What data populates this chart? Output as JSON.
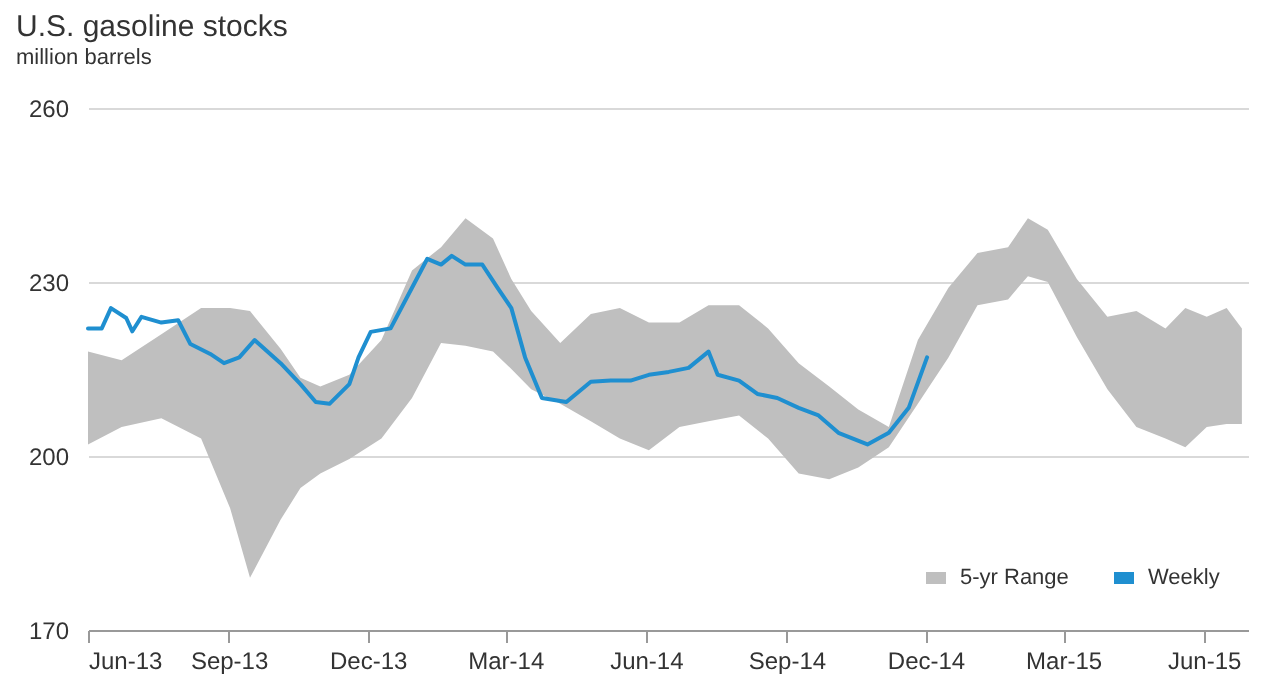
{
  "chart_data": {
    "type": "line",
    "title": "U.S. gasoline stocks",
    "subtitle": "million barrels",
    "xlim": [
      "2013-06-01",
      "2015-06-30"
    ],
    "xticks": [
      {
        "value": "2013-06-01",
        "label": "Jun-13"
      },
      {
        "value": "2013-09-01",
        "label": "Sep-13"
      },
      {
        "value": "2013-12-01",
        "label": "Dec-13"
      },
      {
        "value": "2014-03-01",
        "label": "Mar-14"
      },
      {
        "value": "2014-06-01",
        "label": "Jun-14"
      },
      {
        "value": "2014-09-01",
        "label": "Sep-14"
      },
      {
        "value": "2014-12-01",
        "label": "Dec-14"
      },
      {
        "value": "2015-03-01",
        "label": "Mar-15"
      },
      {
        "value": "2015-06-01",
        "label": "Jun-15"
      }
    ],
    "ylim": [
      170,
      260
    ],
    "yticks": [
      170,
      200,
      230,
      260
    ],
    "grid": "y",
    "legend": "bottom right",
    "series": [
      {
        "name": "5-yr Range",
        "type": "area",
        "color": "#bfbfbf",
        "values": [
          null,
          null,
          null,
          null,
          null,
          null,
          null,
          null,
          null,
          null,
          null,
          null,
          null,
          null,
          null,
          null,
          null,
          null,
          null,
          null,
          null,
          null,
          null,
          null,
          null,
          null,
          null,
          null,
          null,
          null,
          null,
          null,
          null,
          null,
          null,
          null,
          null,
          null,
          null,
          null,
          null,
          null,
          null
        ],
        "x": [
          "2013-06-01",
          "2013-06-23",
          "2013-07-19",
          "2013-08-14",
          "2013-09-02",
          "2013-09-15",
          "2013-10-05",
          "2013-10-18",
          "2013-10-31",
          "2013-11-19",
          "2013-12-10",
          "2013-12-30",
          "2014-01-18",
          "2014-02-03",
          "2014-02-21",
          "2014-03-05",
          "2014-03-18",
          "2014-04-06",
          "2014-04-26",
          "2014-05-15",
          "2014-06-03",
          "2014-06-23",
          "2014-07-12",
          "2014-08-01",
          "2014-08-20",
          "2014-09-09",
          "2014-09-29",
          "2014-10-18",
          "2014-11-07",
          "2014-11-26",
          "2014-12-16",
          "2015-01-04",
          "2015-01-24",
          "2015-02-06",
          "2015-02-19",
          "2015-03-10",
          "2015-03-30",
          "2015-04-18",
          "2015-05-07",
          "2015-05-20",
          "2015-06-03",
          "2015-06-16",
          "2015-06-26"
        ],
        "upper": [
          218,
          216.5,
          221,
          225.5,
          225.5,
          225,
          218.5,
          213.5,
          212,
          214,
          220,
          232,
          236,
          241,
          237.5,
          230.5,
          225,
          219.5,
          224.5,
          225.5,
          223,
          223,
          226,
          226,
          222,
          216,
          212,
          208,
          205,
          220,
          229,
          235,
          236,
          241,
          239,
          230.5,
          224,
          225,
          222,
          225.5,
          224,
          225.5,
          222
        ],
        "lower": [
          202,
          205,
          206.5,
          203,
          191,
          179,
          189,
          194.5,
          197,
          199.5,
          203,
          210,
          219.5,
          219,
          218,
          215,
          211.5,
          209,
          206,
          203,
          201,
          205,
          206,
          207,
          203,
          197,
          196,
          198,
          201.5,
          209,
          217,
          226,
          227,
          231,
          230,
          220.5,
          211.5,
          205,
          203,
          201.5,
          205,
          205.5,
          205.5
        ]
      },
      {
        "name": "Weekly",
        "type": "line",
        "color": "#1f8fd0",
        "x": [
          "2013-06-01",
          "2013-06-10",
          "2013-06-16",
          "2013-06-26",
          "2013-06-30",
          "2013-07-06",
          "2013-07-19",
          "2013-07-30",
          "2013-08-07",
          "2013-08-20",
          "2013-08-29",
          "2013-09-08",
          "2013-09-18",
          "2013-10-05",
          "2013-10-18",
          "2013-10-28",
          "2013-11-06",
          "2013-11-19",
          "2013-11-25",
          "2013-12-03",
          "2013-12-16",
          "2013-12-30",
          "2014-01-09",
          "2014-01-18",
          "2014-01-25",
          "2014-02-03",
          "2014-02-14",
          "2014-02-24",
          "2014-03-05",
          "2014-03-14",
          "2014-03-25",
          "2014-04-10",
          "2014-04-26",
          "2014-05-09",
          "2014-05-22",
          "2014-06-03",
          "2014-06-16",
          "2014-06-29",
          "2014-07-12",
          "2014-07-18",
          "2014-08-01",
          "2014-08-13",
          "2014-08-26",
          "2014-09-09",
          "2014-09-22",
          "2014-10-05",
          "2014-10-24",
          "2014-11-07",
          "2014-11-20",
          "2014-12-02"
        ],
        "values": [
          222,
          222,
          225.5,
          223.8,
          221.5,
          224,
          223,
          223.4,
          219.3,
          217.6,
          216,
          217,
          220,
          216,
          212.4,
          209.3,
          209,
          212.4,
          217,
          221.4,
          222,
          229,
          234,
          233,
          234.5,
          233,
          233,
          229,
          225.5,
          217,
          210,
          209.3,
          212.8,
          213,
          213,
          214,
          214.5,
          215.2,
          218,
          214,
          213,
          210.7,
          210,
          208.3,
          207,
          204,
          202,
          204,
          208.3,
          217
        ]
      }
    ]
  }
}
